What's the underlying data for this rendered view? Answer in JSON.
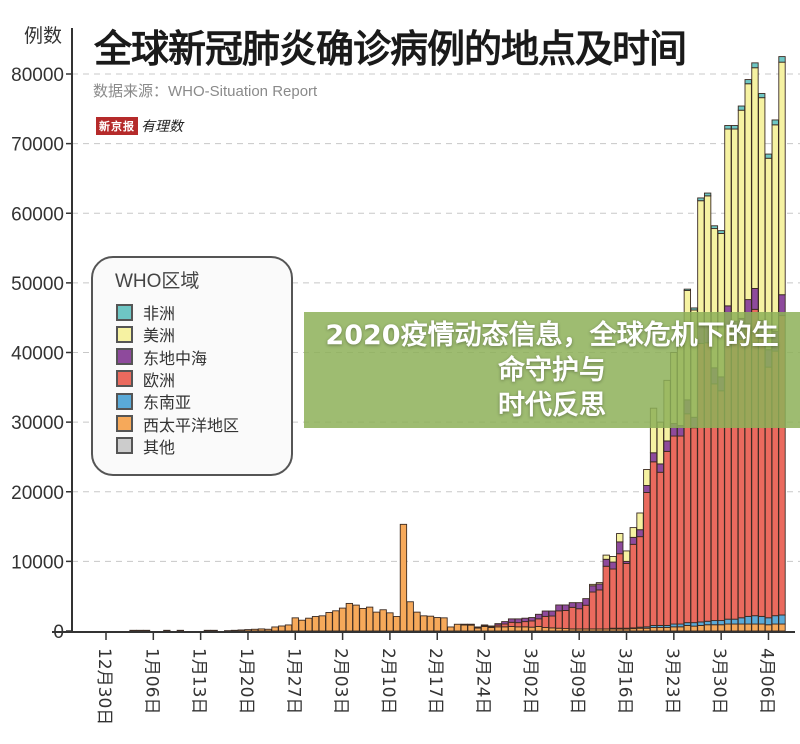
{
  "header": {
    "title": "全球新冠肺炎确诊病例的地点及时间",
    "subtitle": "数据来源：WHO-Situation Report",
    "logo_box": "新京报",
    "logo_script": "有理数"
  },
  "banner": {
    "line1": "2020疫情动态信息，全球危机下的生命守护与",
    "line2": "时代反思",
    "color": "#8db058"
  },
  "chart_data": {
    "type": "bar",
    "stacked": true,
    "title": "全球新冠肺炎确诊病例的地点及时间",
    "ylabel": "例数",
    "xlabel": "",
    "ylim": [
      0,
      82500
    ],
    "yticks": [
      0,
      10000,
      20000,
      30000,
      40000,
      50000,
      60000,
      70000,
      80000
    ],
    "grid": "horizontal dashed",
    "legend": {
      "title": "WHO区域",
      "placement": "left"
    },
    "xtick_labels": [
      {
        "date": "12/30",
        "label": "12月30日"
      },
      {
        "date": "1/06",
        "label": "1月06日"
      },
      {
        "date": "1/13",
        "label": "1月13日"
      },
      {
        "date": "1/20",
        "label": "1月20日"
      },
      {
        "date": "1/27",
        "label": "1月27日"
      },
      {
        "date": "2/03",
        "label": "2月03日"
      },
      {
        "date": "2/10",
        "label": "2月10日"
      },
      {
        "date": "2/17",
        "label": "2月17日"
      },
      {
        "date": "2/24",
        "label": "2月24日"
      },
      {
        "date": "3/02",
        "label": "3月02日"
      },
      {
        "date": "3/09",
        "label": "3月09日"
      },
      {
        "date": "3/16",
        "label": "3月16日"
      },
      {
        "date": "3/23",
        "label": "3月23日"
      },
      {
        "date": "3/30",
        "label": "3月30日"
      },
      {
        "date": "4/06",
        "label": "4月06日"
      }
    ],
    "categories": [
      "12/30",
      "12/31",
      "1/01",
      "1/02",
      "1/03",
      "1/04",
      "1/05",
      "1/06",
      "1/07",
      "1/08",
      "1/09",
      "1/10",
      "1/11",
      "1/12",
      "1/13",
      "1/14",
      "1/15",
      "1/16",
      "1/17",
      "1/18",
      "1/19",
      "1/20",
      "1/21",
      "1/22",
      "1/23",
      "1/24",
      "1/25",
      "1/26",
      "1/27",
      "1/28",
      "1/29",
      "1/30",
      "1/31",
      "2/01",
      "2/02",
      "2/03",
      "2/04",
      "2/05",
      "2/06",
      "2/07",
      "2/08",
      "2/09",
      "2/10",
      "2/11",
      "2/12",
      "2/13",
      "2/14",
      "2/15",
      "2/16",
      "2/17",
      "2/18",
      "2/19",
      "2/20",
      "2/21",
      "2/22",
      "2/23",
      "2/24",
      "2/25",
      "2/26",
      "2/27",
      "2/28",
      "2/29",
      "3/01",
      "3/02",
      "3/03",
      "3/04",
      "3/05",
      "3/06",
      "3/07",
      "3/08",
      "3/09",
      "3/10",
      "3/11",
      "3/12",
      "3/13",
      "3/14",
      "3/15",
      "3/16",
      "3/17",
      "3/18",
      "3/19",
      "3/20",
      "3/21",
      "3/22",
      "3/23",
      "3/24",
      "3/25",
      "3/26",
      "3/27",
      "3/28",
      "3/29",
      "3/30",
      "3/31",
      "4/01",
      "4/02",
      "4/03",
      "4/04",
      "4/05",
      "4/06",
      "4/07",
      "4/08"
    ],
    "series": [
      {
        "name": "西太平洋地区",
        "color": "#f6a95a",
        "values": [
          0,
          0,
          0,
          0,
          100,
          100,
          100,
          0,
          0,
          100,
          0,
          100,
          0,
          0,
          0,
          100,
          100,
          0,
          50,
          100,
          150,
          200,
          250,
          300,
          250,
          580,
          720,
          870,
          1890,
          1550,
          1840,
          2080,
          2180,
          2660,
          2900,
          3290,
          3960,
          3720,
          3240,
          3430,
          2710,
          3050,
          2610,
          2080,
          15320,
          4200,
          2710,
          2180,
          2130,
          1930,
          1890,
          580,
          970,
          950,
          900,
          450,
          650,
          500,
          600,
          600,
          650,
          600,
          600,
          550,
          650,
          500,
          450,
          400,
          350,
          300,
          300,
          300,
          300,
          300,
          300,
          350,
          300,
          300,
          350,
          400,
          400,
          500,
          500,
          500,
          600,
          600,
          800,
          700,
          800,
          900,
          900,
          900,
          1000,
          1000,
          1000,
          1000,
          1000,
          1000,
          900,
          1000,
          1000
        ]
      },
      {
        "name": "东南亚",
        "color": "#5aaad8",
        "values": [
          0,
          0,
          0,
          0,
          0,
          0,
          0,
          0,
          0,
          0,
          0,
          0,
          0,
          0,
          0,
          0,
          0,
          0,
          0,
          0,
          0,
          0,
          0,
          0,
          0,
          0,
          0,
          0,
          0,
          0,
          0,
          0,
          0,
          0,
          0,
          0,
          0,
          0,
          0,
          0,
          0,
          0,
          0,
          0,
          0,
          0,
          0,
          0,
          0,
          0,
          0,
          0,
          0,
          0,
          0,
          0,
          0,
          0,
          0,
          0,
          0,
          0,
          0,
          0,
          0,
          0,
          0,
          0,
          0,
          0,
          0,
          0,
          0,
          0,
          0,
          50,
          100,
          100,
          100,
          150,
          200,
          300,
          300,
          300,
          400,
          400,
          400,
          500,
          500,
          500,
          600,
          600,
          700,
          700,
          900,
          1100,
          1200,
          1100,
          1000,
          1200,
          1300
        ]
      },
      {
        "name": "欧洲",
        "color": "#ea6a5e",
        "values": [
          0,
          0,
          0,
          0,
          0,
          0,
          0,
          0,
          0,
          0,
          0,
          0,
          0,
          0,
          0,
          0,
          0,
          0,
          0,
          0,
          0,
          0,
          0,
          0,
          0,
          0,
          0,
          0,
          0,
          0,
          0,
          0,
          0,
          0,
          0,
          0,
          0,
          0,
          0,
          0,
          0,
          0,
          0,
          0,
          0,
          0,
          0,
          0,
          0,
          0,
          0,
          0,
          0,
          0,
          50,
          80,
          120,
          120,
          250,
          400,
          600,
          600,
          750,
          900,
          1100,
          1600,
          1700,
          2500,
          2600,
          3100,
          2900,
          3400,
          5300,
          5600,
          9000,
          8500,
          10700,
          9300,
          12000,
          13000,
          19300,
          23500,
          22000,
          25000,
          27000,
          27000,
          30000,
          28000,
          40000,
          40000,
          34000,
          33000,
          42000,
          40000,
          40000,
          42000,
          44000,
          40000,
          36000,
          38000,
          43000
        ]
      },
      {
        "name": "东地中海",
        "color": "#8e4a9c",
        "values": [
          0,
          0,
          0,
          0,
          0,
          0,
          0,
          0,
          0,
          0,
          0,
          0,
          0,
          0,
          0,
          0,
          0,
          0,
          0,
          0,
          0,
          0,
          0,
          0,
          0,
          0,
          0,
          0,
          0,
          0,
          0,
          0,
          0,
          0,
          0,
          0,
          0,
          0,
          0,
          0,
          0,
          0,
          0,
          0,
          0,
          0,
          0,
          0,
          0,
          0,
          0,
          0,
          0,
          20,
          20,
          50,
          100,
          100,
          210,
          350,
          490,
          540,
          490,
          480,
          650,
          770,
          720,
          840,
          790,
          670,
          870,
          950,
          900,
          850,
          1000,
          1000,
          1700,
          300,
          1000,
          1000,
          1000,
          1300,
          1200,
          1500,
          1800,
          1500,
          2000,
          1500,
          2500,
          2500,
          2300,
          2000,
          3000,
          2800,
          3000,
          3500,
          3000,
          2500,
          2500,
          2800,
          3000
        ]
      },
      {
        "name": "美洲",
        "color": "#f6f2a2",
        "values": [
          0,
          0,
          0,
          0,
          0,
          0,
          0,
          0,
          0,
          0,
          0,
          0,
          0,
          0,
          0,
          0,
          0,
          0,
          0,
          0,
          0,
          0,
          0,
          0,
          0,
          0,
          0,
          0,
          0,
          0,
          0,
          0,
          0,
          0,
          0,
          0,
          0,
          0,
          0,
          0,
          0,
          0,
          0,
          0,
          0,
          0,
          0,
          0,
          0,
          0,
          0,
          0,
          0,
          0,
          0,
          0,
          0,
          0,
          0,
          0,
          0,
          0,
          0,
          0,
          0,
          0,
          0,
          0,
          0,
          0,
          0,
          0,
          200,
          200,
          600,
          800,
          1200,
          1500,
          1400,
          2400,
          2300,
          6400,
          6000,
          8700,
          10200,
          11500,
          15700,
          15400,
          18000,
          18600,
          20000,
          20600,
          25400,
          27600,
          29900,
          31000,
          31700,
          32000,
          27500,
          29700,
          33400
        ]
      },
      {
        "name": "非洲",
        "color": "#6ec6c4",
        "values": [
          0,
          0,
          0,
          0,
          0,
          0,
          0,
          0,
          0,
          0,
          0,
          0,
          0,
          0,
          0,
          0,
          0,
          0,
          0,
          0,
          0,
          0,
          0,
          0,
          0,
          0,
          0,
          0,
          0,
          0,
          0,
          0,
          0,
          0,
          0,
          0,
          0,
          0,
          0,
          0,
          0,
          0,
          0,
          0,
          0,
          0,
          0,
          0,
          0,
          0,
          0,
          0,
          0,
          0,
          0,
          0,
          0,
          0,
          0,
          0,
          0,
          0,
          0,
          0,
          0,
          0,
          0,
          0,
          0,
          0,
          0,
          0,
          0,
          0,
          0,
          0,
          0,
          0,
          0,
          0,
          0,
          0,
          0,
          0,
          0,
          0,
          200,
          300,
          400,
          400,
          400,
          400,
          500,
          500,
          600,
          600,
          700,
          600,
          600,
          700,
          800
        ]
      },
      {
        "name": "其他",
        "color": "#cccccc",
        "values": [
          0,
          0,
          0,
          0,
          0,
          0,
          0,
          0,
          0,
          0,
          0,
          0,
          0,
          0,
          0,
          0,
          0,
          0,
          0,
          0,
          0,
          0,
          0,
          0,
          0,
          0,
          0,
          0,
          0,
          0,
          0,
          0,
          0,
          0,
          0,
          0,
          0,
          0,
          0,
          0,
          0,
          0,
          0,
          0,
          0,
          0,
          0,
          0,
          0,
          0,
          0,
          0,
          0,
          0,
          0,
          0,
          0,
          0,
          0,
          0,
          0,
          0,
          0,
          0,
          0,
          0,
          0,
          0,
          0,
          0,
          0,
          0,
          0,
          0,
          0,
          0,
          0,
          0,
          0,
          0,
          0,
          0,
          0,
          0,
          0,
          0,
          0,
          0,
          0,
          0,
          0,
          0,
          0,
          0,
          0,
          0,
          0,
          0,
          0,
          0,
          0
        ]
      }
    ]
  },
  "legend": {
    "title": "WHO区域",
    "items": [
      {
        "label": "非洲",
        "color": "#6ec6c4"
      },
      {
        "label": "美洲",
        "color": "#f6f2a2"
      },
      {
        "label": "东地中海",
        "color": "#8e4a9c"
      },
      {
        "label": "欧洲",
        "color": "#ea6a5e"
      },
      {
        "label": "东南亚",
        "color": "#5aaad8"
      },
      {
        "label": "西太平洋地区",
        "color": "#f6a95a"
      },
      {
        "label": "其他",
        "color": "#cccccc"
      }
    ]
  }
}
